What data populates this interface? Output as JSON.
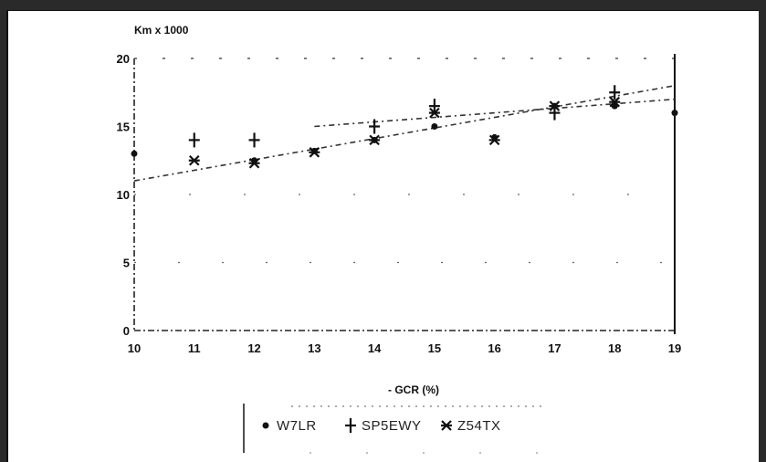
{
  "chart_data": {
    "type": "scatter",
    "title": "",
    "ylabel": "Km x 1000",
    "xlabel": "- GCR (%)",
    "xlim": [
      10,
      19
    ],
    "ylim": [
      0,
      20
    ],
    "x_ticks": [
      "10",
      "11",
      "12",
      "13",
      "14",
      "15",
      "16",
      "17",
      "18",
      "19"
    ],
    "y_ticks": [
      "0",
      "5",
      "10",
      "15",
      "20"
    ],
    "grid": false,
    "legend_position": "bottom",
    "series": [
      {
        "name": "W7LR",
        "marker": "dot",
        "points": [
          [
            10,
            13
          ],
          [
            12,
            12.5
          ],
          [
            13,
            13.2
          ],
          [
            14,
            14
          ],
          [
            15,
            15
          ],
          [
            16,
            14.2
          ],
          [
            17,
            16.5
          ],
          [
            18,
            16.5
          ],
          [
            19,
            16
          ]
        ]
      },
      {
        "name": "SP5EWY",
        "marker": "plus",
        "points": [
          [
            11,
            14
          ],
          [
            12,
            14
          ],
          [
            14,
            15
          ],
          [
            15,
            16.5
          ],
          [
            17,
            16
          ],
          [
            18,
            17.5
          ]
        ]
      },
      {
        "name": "Z54TX",
        "marker": "asterisk",
        "points": [
          [
            11,
            12.5
          ],
          [
            12,
            12.3
          ],
          [
            13,
            13.1
          ],
          [
            14,
            14
          ],
          [
            15,
            16
          ],
          [
            16,
            14
          ],
          [
            17,
            16.5
          ],
          [
            18,
            16.8
          ]
        ]
      }
    ],
    "trendlines": [
      {
        "from": [
          10,
          11
        ],
        "to": [
          19,
          18
        ]
      },
      {
        "from": [
          13,
          15
        ],
        "to": [
          19,
          17
        ]
      }
    ]
  }
}
